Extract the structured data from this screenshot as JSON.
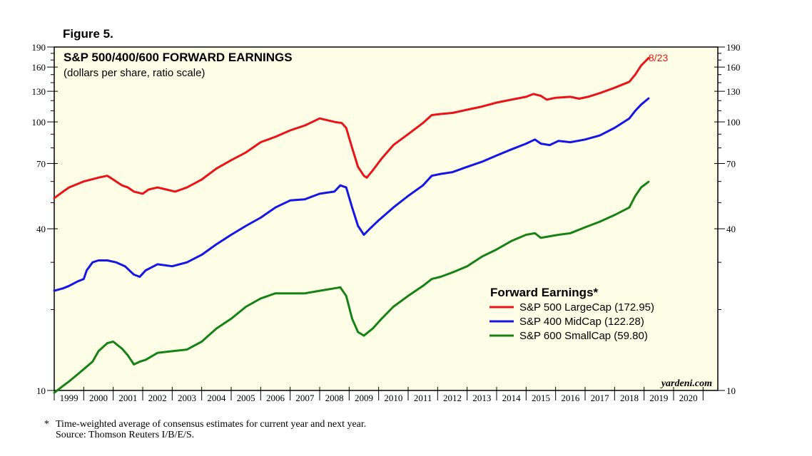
{
  "figure_label": "Figure 5.",
  "chart_data": {
    "type": "line",
    "title": "S&P 500/400/600 FORWARD EARNINGS",
    "subtitle": "(dollars per share, ratio scale)",
    "y_scale": "log",
    "ylim": [
      10,
      190
    ],
    "y_ticks": [
      10,
      40,
      70,
      100,
      130,
      160,
      190
    ],
    "x_ticks": [
      "1999",
      "2000",
      "2001",
      "2002",
      "2003",
      "2004",
      "2005",
      "2006",
      "2007",
      "2008",
      "2009",
      "2010",
      "2011",
      "2012",
      "2013",
      "2014",
      "2015",
      "2016",
      "2017",
      "2018",
      "2019",
      "2020"
    ],
    "xlim": [
      1998.5,
      2021.0
    ],
    "end_annotation": "8/23",
    "watermark": "yardeni.com",
    "legend": {
      "title": "Forward Earnings*",
      "placement": "lower-right",
      "entries": [
        "S&P 500 LargeCap (172.95)",
        "S&P 400 MidCap (122.28)",
        "S&P 600 SmallCap (59.80)"
      ]
    },
    "series": [
      {
        "name": "S&P 500 LargeCap",
        "color": "#e8141a",
        "points": [
          [
            1998.5,
            52
          ],
          [
            1998.8,
            55
          ],
          [
            1999.0,
            57
          ],
          [
            1999.5,
            60
          ],
          [
            2000.0,
            62
          ],
          [
            2000.3,
            63
          ],
          [
            2000.5,
            61
          ],
          [
            2000.8,
            58
          ],
          [
            2001.0,
            57
          ],
          [
            2001.2,
            55
          ],
          [
            2001.5,
            54
          ],
          [
            2001.7,
            56
          ],
          [
            2002.0,
            57
          ],
          [
            2002.3,
            56
          ],
          [
            2002.6,
            55
          ],
          [
            2003.0,
            57
          ],
          [
            2003.5,
            61
          ],
          [
            2004.0,
            67
          ],
          [
            2004.5,
            72
          ],
          [
            2005.0,
            77
          ],
          [
            2005.5,
            84
          ],
          [
            2006.0,
            88
          ],
          [
            2006.5,
            93
          ],
          [
            2007.0,
            97
          ],
          [
            2007.5,
            103
          ],
          [
            2008.0,
            100
          ],
          [
            2008.25,
            99
          ],
          [
            2008.4,
            95
          ],
          [
            2008.6,
            80
          ],
          [
            2008.8,
            68
          ],
          [
            2009.0,
            63
          ],
          [
            2009.1,
            62
          ],
          [
            2009.3,
            66
          ],
          [
            2009.6,
            73
          ],
          [
            2010.0,
            82
          ],
          [
            2010.5,
            90
          ],
          [
            2011.0,
            99
          ],
          [
            2011.3,
            106
          ],
          [
            2011.6,
            107
          ],
          [
            2012.0,
            108
          ],
          [
            2012.5,
            111
          ],
          [
            2013.0,
            114
          ],
          [
            2013.5,
            118
          ],
          [
            2014.0,
            121
          ],
          [
            2014.5,
            124
          ],
          [
            2014.75,
            127
          ],
          [
            2015.0,
            125
          ],
          [
            2015.2,
            121
          ],
          [
            2015.5,
            123
          ],
          [
            2016.0,
            124
          ],
          [
            2016.3,
            122
          ],
          [
            2016.6,
            124
          ],
          [
            2017.0,
            128
          ],
          [
            2017.5,
            134
          ],
          [
            2018.0,
            141
          ],
          [
            2018.2,
            150
          ],
          [
            2018.4,
            162
          ],
          [
            2018.65,
            172.95
          ]
        ]
      },
      {
        "name": "S&P 400 MidCap",
        "color": "#1515e6",
        "points": [
          [
            1998.5,
            23.5
          ],
          [
            1998.8,
            24
          ],
          [
            1999.0,
            24.5
          ],
          [
            1999.3,
            25.5
          ],
          [
            1999.5,
            26
          ],
          [
            1999.6,
            28
          ],
          [
            1999.8,
            30
          ],
          [
            2000.0,
            30.5
          ],
          [
            2000.3,
            30.5
          ],
          [
            2000.6,
            30
          ],
          [
            2000.9,
            29
          ],
          [
            2001.2,
            27
          ],
          [
            2001.4,
            26.5
          ],
          [
            2001.6,
            28
          ],
          [
            2002.0,
            29.5
          ],
          [
            2002.5,
            29
          ],
          [
            2003.0,
            30
          ],
          [
            2003.5,
            32
          ],
          [
            2004.0,
            35
          ],
          [
            2004.5,
            38
          ],
          [
            2005.0,
            41
          ],
          [
            2005.5,
            44
          ],
          [
            2006.0,
            48
          ],
          [
            2006.5,
            51
          ],
          [
            2007.0,
            51.5
          ],
          [
            2007.5,
            54
          ],
          [
            2008.0,
            55
          ],
          [
            2008.2,
            58
          ],
          [
            2008.4,
            57
          ],
          [
            2008.6,
            48
          ],
          [
            2008.8,
            41
          ],
          [
            2009.0,
            38
          ],
          [
            2009.2,
            40
          ],
          [
            2009.5,
            43
          ],
          [
            2010.0,
            48
          ],
          [
            2010.5,
            53
          ],
          [
            2011.0,
            58
          ],
          [
            2011.3,
            63
          ],
          [
            2011.6,
            64
          ],
          [
            2012.0,
            65
          ],
          [
            2012.5,
            68
          ],
          [
            2013.0,
            71
          ],
          [
            2013.5,
            75
          ],
          [
            2014.0,
            79
          ],
          [
            2014.5,
            83
          ],
          [
            2014.8,
            86
          ],
          [
            2015.0,
            83
          ],
          [
            2015.3,
            82
          ],
          [
            2015.6,
            85
          ],
          [
            2016.0,
            84
          ],
          [
            2016.5,
            86
          ],
          [
            2017.0,
            89
          ],
          [
            2017.5,
            95
          ],
          [
            2018.0,
            103
          ],
          [
            2018.2,
            110
          ],
          [
            2018.4,
            116
          ],
          [
            2018.65,
            122.28
          ]
        ]
      },
      {
        "name": "S&P 600 SmallCap",
        "color": "#168216",
        "points": [
          [
            1998.5,
            9.8
          ],
          [
            1998.8,
            10.4
          ],
          [
            1999.0,
            10.8
          ],
          [
            1999.3,
            11.5
          ],
          [
            1999.5,
            12.0
          ],
          [
            1999.8,
            12.8
          ],
          [
            2000.0,
            14.0
          ],
          [
            2000.3,
            15.0
          ],
          [
            2000.5,
            15.2
          ],
          [
            2000.8,
            14.3
          ],
          [
            2001.0,
            13.5
          ],
          [
            2001.2,
            12.5
          ],
          [
            2001.4,
            12.8
          ],
          [
            2001.6,
            13.0
          ],
          [
            2002.0,
            13.8
          ],
          [
            2002.5,
            14.0
          ],
          [
            2003.0,
            14.2
          ],
          [
            2003.5,
            15.2
          ],
          [
            2004.0,
            17.0
          ],
          [
            2004.5,
            18.5
          ],
          [
            2005.0,
            20.5
          ],
          [
            2005.5,
            22.0
          ],
          [
            2006.0,
            23.0
          ],
          [
            2006.5,
            23.0
          ],
          [
            2007.0,
            23.0
          ],
          [
            2007.5,
            23.5
          ],
          [
            2008.0,
            24.0
          ],
          [
            2008.2,
            24.2
          ],
          [
            2008.4,
            22.5
          ],
          [
            2008.6,
            18.5
          ],
          [
            2008.8,
            16.5
          ],
          [
            2009.0,
            16.0
          ],
          [
            2009.3,
            17.0
          ],
          [
            2009.6,
            18.5
          ],
          [
            2010.0,
            20.5
          ],
          [
            2010.5,
            22.5
          ],
          [
            2011.0,
            24.5
          ],
          [
            2011.3,
            26.0
          ],
          [
            2011.6,
            26.5
          ],
          [
            2012.0,
            27.5
          ],
          [
            2012.5,
            29.0
          ],
          [
            2013.0,
            31.5
          ],
          [
            2013.5,
            33.5
          ],
          [
            2014.0,
            36.0
          ],
          [
            2014.5,
            38.0
          ],
          [
            2014.8,
            38.5
          ],
          [
            2015.0,
            37.0
          ],
          [
            2015.3,
            37.5
          ],
          [
            2015.6,
            38.0
          ],
          [
            2016.0,
            38.5
          ],
          [
            2016.5,
            40.5
          ],
          [
            2017.0,
            42.5
          ],
          [
            2017.5,
            45.0
          ],
          [
            2018.0,
            48.0
          ],
          [
            2018.2,
            53.0
          ],
          [
            2018.4,
            57.0
          ],
          [
            2018.65,
            59.8
          ]
        ]
      }
    ]
  },
  "footnote": {
    "marker": "*",
    "line1": "Time-weighted average of consensus estimates for current year and next year.",
    "line2": "Source: Thomson Reuters I/B/E/S."
  }
}
